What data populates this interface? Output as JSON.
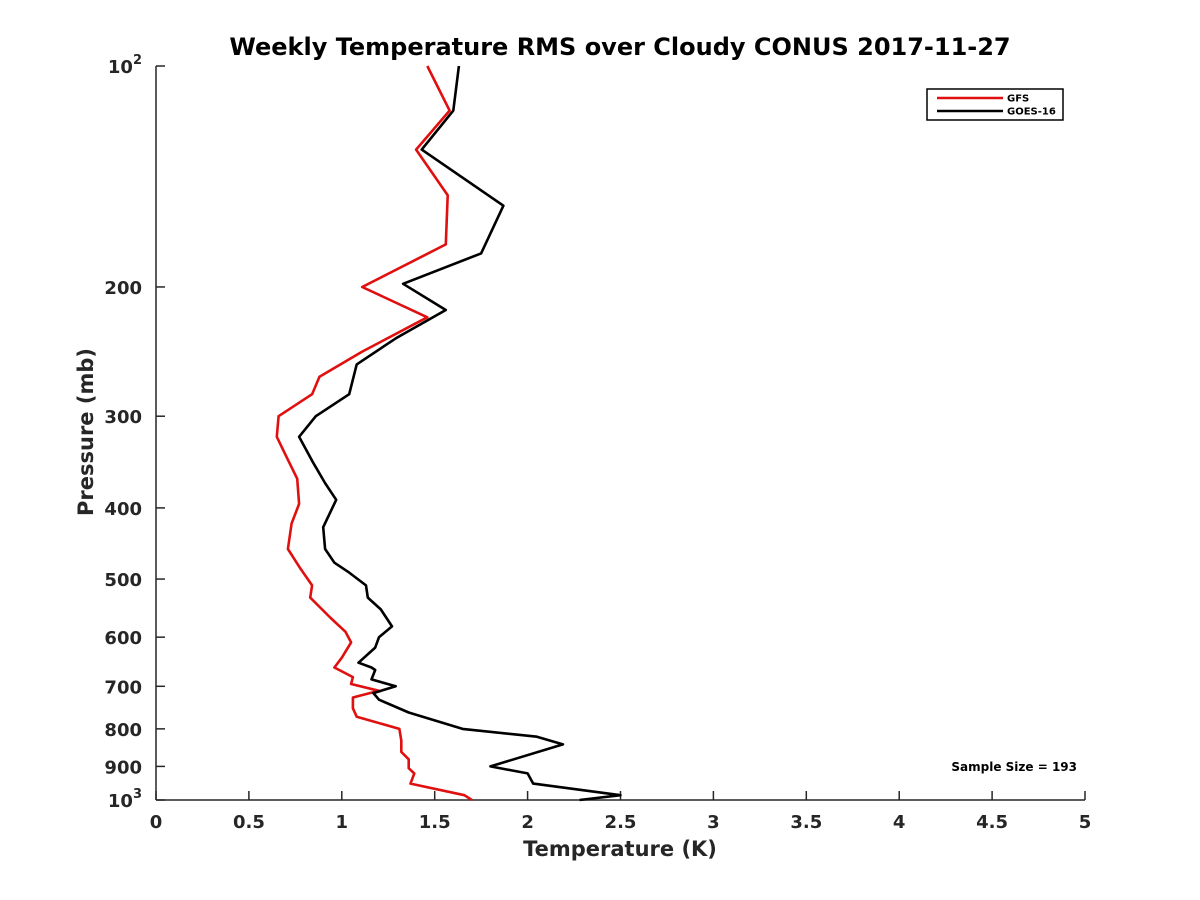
{
  "chart_data": {
    "type": "line",
    "title": "Weekly Temperature RMS over Cloudy CONUS 2017-11-27",
    "xlabel": "Temperature (K)",
    "ylabel": "Pressure (mb)",
    "xlim": [
      0,
      5
    ],
    "ylim": [
      100,
      1000
    ],
    "y_scale": "log",
    "y_reversed": true,
    "grid": false,
    "legend_position": "top-right",
    "x_ticks": [
      {
        "value": 0,
        "label": "0"
      },
      {
        "value": 0.5,
        "label": "0.5"
      },
      {
        "value": 1,
        "label": "1"
      },
      {
        "value": 1.5,
        "label": "1.5"
      },
      {
        "value": 2,
        "label": "2"
      },
      {
        "value": 2.5,
        "label": "2.5"
      },
      {
        "value": 3,
        "label": "3"
      },
      {
        "value": 3.5,
        "label": "3.5"
      },
      {
        "value": 4,
        "label": "4"
      },
      {
        "value": 4.5,
        "label": "4.5"
      },
      {
        "value": 5,
        "label": "5"
      }
    ],
    "y_ticks": [
      {
        "value": 100,
        "base": "10",
        "exp": "2"
      },
      {
        "value": 200,
        "label": "200"
      },
      {
        "value": 300,
        "label": "300"
      },
      {
        "value": 400,
        "label": "400"
      },
      {
        "value": 500,
        "label": "500"
      },
      {
        "value": 600,
        "label": "600"
      },
      {
        "value": 700,
        "label": "700"
      },
      {
        "value": 800,
        "label": "800"
      },
      {
        "value": 900,
        "label": "900"
      },
      {
        "value": 1000,
        "base": "10",
        "exp": "3"
      }
    ],
    "annotation": "Sample Size = 193",
    "series": [
      {
        "name": "GFS",
        "color": "#e01010",
        "points": [
          [
            1.46,
            100
          ],
          [
            1.58,
            115
          ],
          [
            1.4,
            130
          ],
          [
            1.57,
            150
          ],
          [
            1.56,
            175
          ],
          [
            1.11,
            200
          ],
          [
            1.46,
            220
          ],
          [
            1.11,
            245
          ],
          [
            0.88,
            265
          ],
          [
            0.84,
            280
          ],
          [
            0.66,
            300
          ],
          [
            0.65,
            320
          ],
          [
            0.7,
            340
          ],
          [
            0.76,
            365
          ],
          [
            0.77,
            395
          ],
          [
            0.73,
            420
          ],
          [
            0.71,
            455
          ],
          [
            0.78,
            485
          ],
          [
            0.84,
            510
          ],
          [
            0.83,
            530
          ],
          [
            0.94,
            565
          ],
          [
            1.02,
            590
          ],
          [
            1.05,
            610
          ],
          [
            1.0,
            640
          ],
          [
            0.96,
            660
          ],
          [
            1.06,
            680
          ],
          [
            1.05,
            695
          ],
          [
            1.2,
            710
          ],
          [
            1.06,
            725
          ],
          [
            1.06,
            750
          ],
          [
            1.08,
            770
          ],
          [
            1.31,
            800
          ],
          [
            1.32,
            830
          ],
          [
            1.32,
            860
          ],
          [
            1.36,
            880
          ],
          [
            1.36,
            905
          ],
          [
            1.39,
            920
          ],
          [
            1.37,
            950
          ],
          [
            1.66,
            985
          ],
          [
            1.7,
            1000
          ]
        ]
      },
      {
        "name": "GOES-16",
        "color": "#000000",
        "points": [
          [
            1.63,
            100
          ],
          [
            1.6,
            115
          ],
          [
            1.43,
            130
          ],
          [
            1.87,
            155
          ],
          [
            1.75,
            180
          ],
          [
            1.33,
            198
          ],
          [
            1.56,
            215
          ],
          [
            1.29,
            235
          ],
          [
            1.08,
            255
          ],
          [
            1.04,
            280
          ],
          [
            0.86,
            300
          ],
          [
            0.77,
            320
          ],
          [
            0.84,
            345
          ],
          [
            0.91,
            370
          ],
          [
            0.97,
            390
          ],
          [
            0.9,
            425
          ],
          [
            0.91,
            455
          ],
          [
            0.96,
            475
          ],
          [
            1.04,
            490
          ],
          [
            1.13,
            510
          ],
          [
            1.14,
            530
          ],
          [
            1.21,
            550
          ],
          [
            1.27,
            580
          ],
          [
            1.2,
            600
          ],
          [
            1.18,
            620
          ],
          [
            1.09,
            650
          ],
          [
            1.16,
            660
          ],
          [
            1.18,
            665
          ],
          [
            1.16,
            685
          ],
          [
            1.29,
            700
          ],
          [
            1.17,
            715
          ],
          [
            1.2,
            730
          ],
          [
            1.36,
            760
          ],
          [
            1.65,
            800
          ],
          [
            2.05,
            820
          ],
          [
            2.19,
            840
          ],
          [
            1.8,
            900
          ],
          [
            2.0,
            920
          ],
          [
            2.03,
            950
          ],
          [
            2.5,
            985
          ],
          [
            2.28,
            1000
          ]
        ]
      }
    ]
  }
}
